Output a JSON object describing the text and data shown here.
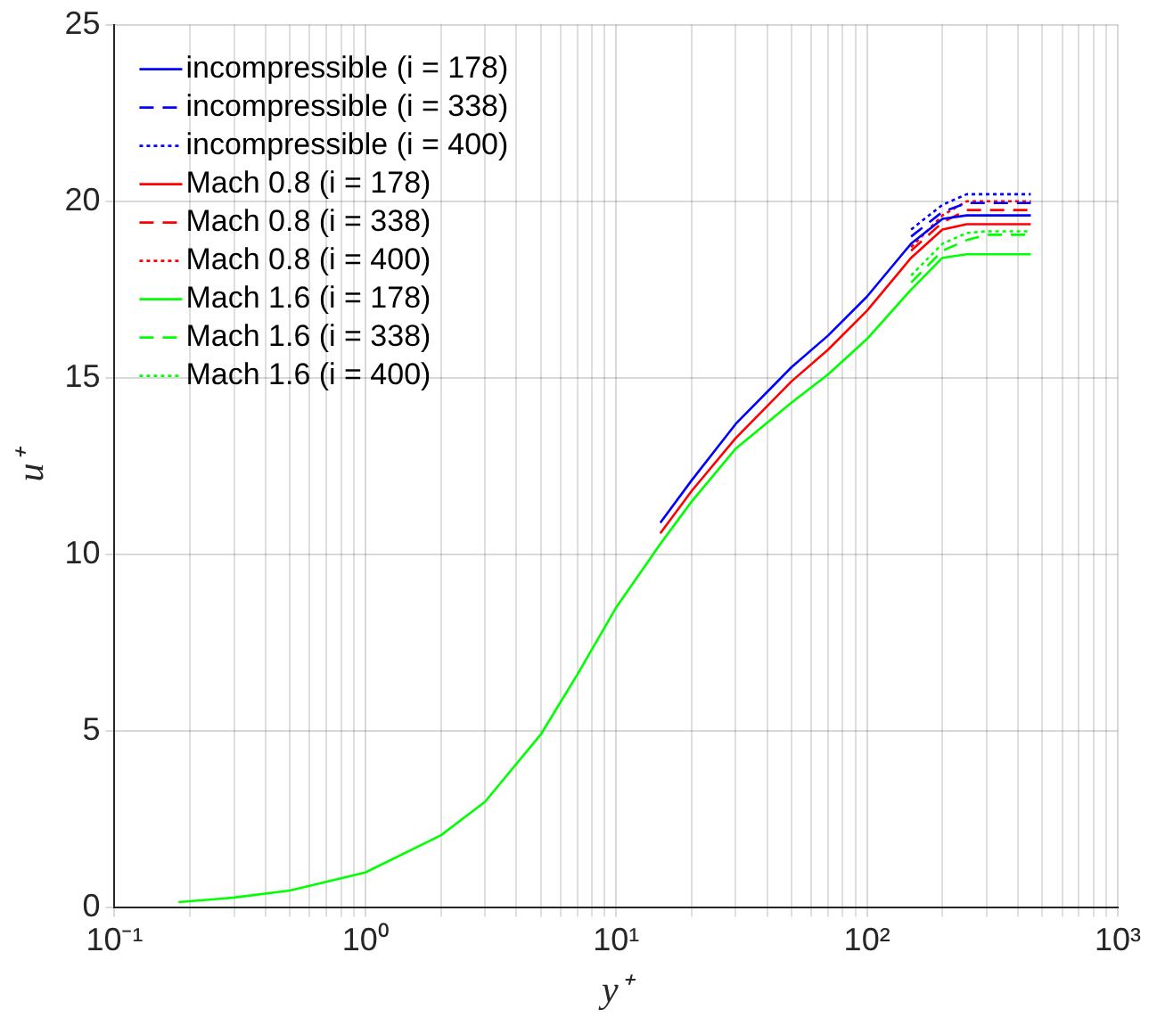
{
  "chart_data": {
    "type": "line",
    "xlabel": "y⁺",
    "ylabel": "u⁺",
    "log": "x",
    "grid": true,
    "legend": "top left",
    "xlim": [
      0.1,
      1000
    ],
    "ylim": [
      0,
      25
    ],
    "yticks": [
      0,
      5,
      10,
      15,
      20,
      25
    ],
    "xticks": [
      {
        "value": 0.1,
        "label": "10⁻¹"
      },
      {
        "value": 0.2,
        "label": null
      },
      {
        "value": 0.3,
        "label": null
      },
      {
        "value": 0.4,
        "label": null
      },
      {
        "value": 0.5,
        "label": null
      },
      {
        "value": 0.6,
        "label": null
      },
      {
        "value": 0.7,
        "label": null
      },
      {
        "value": 0.8,
        "label": null
      },
      {
        "value": 0.9,
        "label": null
      },
      {
        "value": 1,
        "label": "10⁰"
      },
      {
        "value": 2,
        "label": null
      },
      {
        "value": 3,
        "label": null
      },
      {
        "value": 4,
        "label": null
      },
      {
        "value": 5,
        "label": null
      },
      {
        "value": 6,
        "label": null
      },
      {
        "value": 7,
        "label": null
      },
      {
        "value": 8,
        "label": null
      },
      {
        "value": 9,
        "label": null
      },
      {
        "value": 10,
        "label": "10¹"
      },
      {
        "value": 20,
        "label": null
      },
      {
        "value": 30,
        "label": null
      },
      {
        "value": 40,
        "label": null
      },
      {
        "value": 50,
        "label": null
      },
      {
        "value": 60,
        "label": null
      },
      {
        "value": 70,
        "label": null
      },
      {
        "value": 80,
        "label": null
      },
      {
        "value": 90,
        "label": null
      },
      {
        "value": 100,
        "label": "10²"
      },
      {
        "value": 200,
        "label": null
      },
      {
        "value": 300,
        "label": null
      },
      {
        "value": 400,
        "label": null
      },
      {
        "value": 500,
        "label": null
      },
      {
        "value": 600,
        "label": null
      },
      {
        "value": 700,
        "label": null
      },
      {
        "value": 800,
        "label": null
      },
      {
        "value": 900,
        "label": null
      },
      {
        "value": 1000,
        "label": "10³"
      }
    ],
    "x": [
      0.18,
      0.3,
      0.5,
      1,
      2,
      3,
      5,
      7,
      10,
      15,
      20,
      30,
      50,
      70,
      100,
      150,
      200,
      250,
      300,
      400,
      450
    ],
    "series": [
      {
        "name": "incompressible (i = 178)",
        "color": "#0000ff",
        "line_style": "solid",
        "values": [
          null,
          null,
          null,
          null,
          null,
          null,
          null,
          null,
          null,
          10.9,
          12.1,
          13.7,
          15.3,
          16.2,
          17.3,
          18.8,
          19.5,
          19.6,
          19.6,
          19.6,
          19.6
        ]
      },
      {
        "name": "incompressible (i = 338)",
        "color": "#0000ff",
        "line_style": "dashed",
        "values": [
          null,
          null,
          null,
          null,
          null,
          null,
          null,
          null,
          null,
          null,
          null,
          null,
          null,
          null,
          null,
          19.0,
          19.7,
          19.95,
          19.95,
          19.95,
          19.95
        ]
      },
      {
        "name": "incompressible (i = 400)",
        "color": "#0000ff",
        "line_style": "dotted",
        "values": [
          null,
          null,
          null,
          null,
          null,
          null,
          null,
          null,
          null,
          null,
          null,
          null,
          null,
          null,
          null,
          19.2,
          19.9,
          20.2,
          20.2,
          20.2,
          20.2
        ]
      },
      {
        "name": "Mach 0.8 (i = 178)",
        "color": "#ff0000",
        "line_style": "solid",
        "values": [
          null,
          null,
          null,
          null,
          null,
          null,
          null,
          null,
          null,
          10.6,
          11.8,
          13.3,
          14.9,
          15.8,
          16.9,
          18.4,
          19.2,
          19.35,
          19.35,
          19.35,
          19.35
        ]
      },
      {
        "name": "Mach 0.8 (i = 338)",
        "color": "#ff0000",
        "line_style": "dashed",
        "values": [
          null,
          null,
          null,
          null,
          null,
          null,
          null,
          null,
          null,
          null,
          null,
          null,
          null,
          null,
          null,
          18.6,
          19.4,
          19.75,
          19.75,
          19.75,
          19.75
        ]
      },
      {
        "name": "Mach 0.8 (i = 400)",
        "color": "#ff0000",
        "line_style": "dotted",
        "values": [
          null,
          null,
          null,
          null,
          null,
          null,
          null,
          null,
          null,
          null,
          null,
          null,
          null,
          null,
          null,
          18.7,
          19.6,
          20.0,
          20.0,
          20.0,
          20.0
        ]
      },
      {
        "name": "Mach 1.6 (i = 178)",
        "color": "#00ff00",
        "line_style": "solid",
        "values": [
          0.16,
          0.29,
          0.49,
          1.0,
          2.05,
          3.0,
          4.9,
          6.6,
          8.5,
          10.3,
          11.5,
          13.0,
          14.3,
          15.1,
          16.1,
          17.5,
          18.4,
          18.5,
          18.5,
          18.5,
          18.5
        ]
      },
      {
        "name": "Mach 1.6 (i = 338)",
        "color": "#00ff00",
        "line_style": "dashed",
        "values": [
          null,
          null,
          null,
          null,
          null,
          null,
          null,
          null,
          null,
          null,
          null,
          null,
          null,
          null,
          null,
          17.7,
          18.6,
          18.9,
          19.05,
          19.05,
          19.05
        ]
      },
      {
        "name": "Mach 1.6 (i = 400)",
        "color": "#00ff00",
        "line_style": "dotted",
        "values": [
          null,
          null,
          null,
          null,
          null,
          null,
          null,
          null,
          null,
          null,
          null,
          null,
          null,
          null,
          null,
          17.9,
          18.8,
          19.1,
          19.15,
          19.15,
          19.15
        ]
      }
    ]
  }
}
